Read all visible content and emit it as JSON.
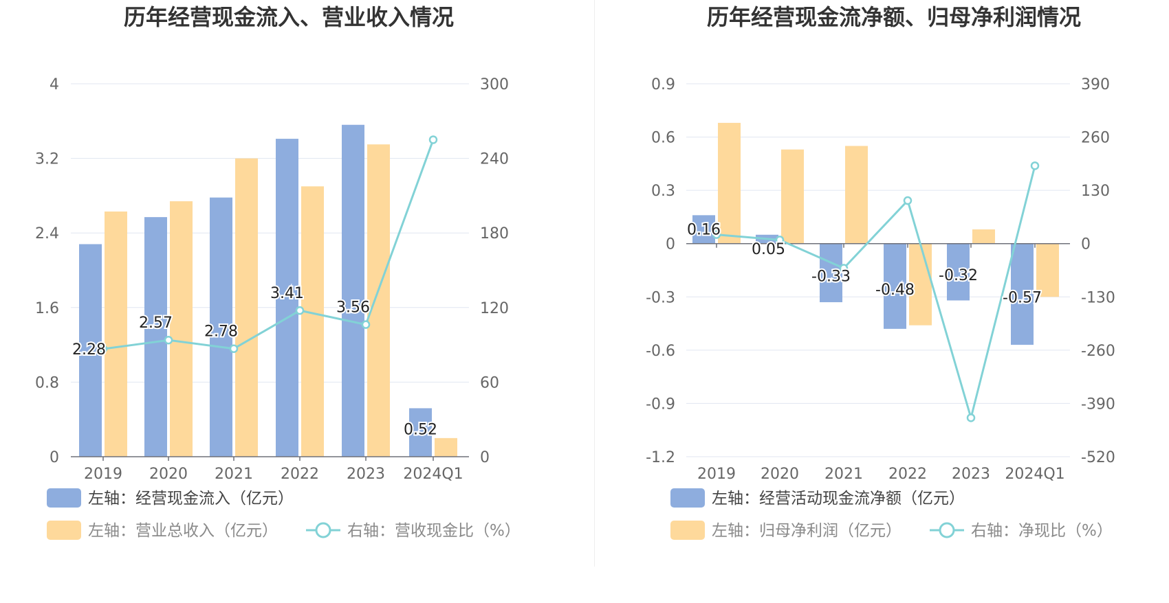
{
  "chart_data": [
    {
      "type": "bar",
      "title": "历年经营现金流入、营业收入情况",
      "categories": [
        "2019",
        "2020",
        "2021",
        "2022",
        "2023",
        "2024Q1"
      ],
      "left_axis": {
        "min": 0,
        "max": 4,
        "ticks": [
          "0",
          "0.8",
          "1.6",
          "2.4",
          "3.2",
          "4"
        ]
      },
      "right_axis": {
        "min": 0,
        "max": 300,
        "ticks": [
          "0",
          "60",
          "120",
          "180",
          "240",
          "300"
        ]
      },
      "grid": true,
      "legend_position": "bottom",
      "series": [
        {
          "name": "左轴：经营现金流入（亿元）",
          "kind": "bar",
          "axis": "left",
          "color": "#8eadde",
          "values": [
            2.28,
            2.57,
            2.78,
            3.41,
            3.56,
            0.52
          ],
          "labels": [
            "2.28",
            "2.57",
            "2.78",
            "3.41",
            "3.56",
            "0.52"
          ]
        },
        {
          "name": "左轴：营业总收入（亿元）",
          "kind": "bar",
          "axis": "left",
          "color": "#fed99b",
          "values": [
            2.63,
            2.74,
            3.2,
            2.9,
            3.35,
            0.2
          ]
        },
        {
          "name": "右轴：营收现金比（%）",
          "kind": "line",
          "axis": "right",
          "color": "#82d2d6",
          "values": [
            86.7,
            93.8,
            86.9,
            117.6,
            106.3,
            255
          ]
        }
      ]
    },
    {
      "type": "bar",
      "title": "历年经营现金流净额、归母净利润情况",
      "categories": [
        "2019",
        "2020",
        "2021",
        "2022",
        "2023",
        "2024Q1"
      ],
      "left_axis": {
        "min": -1.2,
        "max": 0.9,
        "ticks": [
          "-1.2",
          "-0.9",
          "-0.6",
          "-0.3",
          "0",
          "0.3",
          "0.6",
          "0.9"
        ]
      },
      "right_axis": {
        "min": -520,
        "max": 390,
        "ticks": [
          "-520",
          "-390",
          "-260",
          "-130",
          "0",
          "130",
          "260",
          "390"
        ]
      },
      "grid": true,
      "legend_position": "bottom",
      "series": [
        {
          "name": "左轴：经营活动现金流净额（亿元）",
          "kind": "bar",
          "axis": "left",
          "color": "#8eadde",
          "values": [
            0.16,
            0.05,
            -0.33,
            -0.48,
            -0.32,
            -0.57
          ],
          "labels": [
            "0.16",
            "0.05",
            "-0.33",
            "-0.48",
            "-0.32",
            "-0.57"
          ]
        },
        {
          "name": "左轴：归母净利润（亿元）",
          "kind": "bar",
          "axis": "left",
          "color": "#fed99b",
          "values": [
            0.68,
            0.53,
            0.55,
            -0.46,
            0.08,
            -0.3
          ]
        },
        {
          "name": "右轴：净现比（%）",
          "kind": "line",
          "axis": "right",
          "color": "#82d2d6",
          "values": [
            22,
            9,
            -60,
            105,
            -425,
            190
          ]
        }
      ]
    }
  ]
}
